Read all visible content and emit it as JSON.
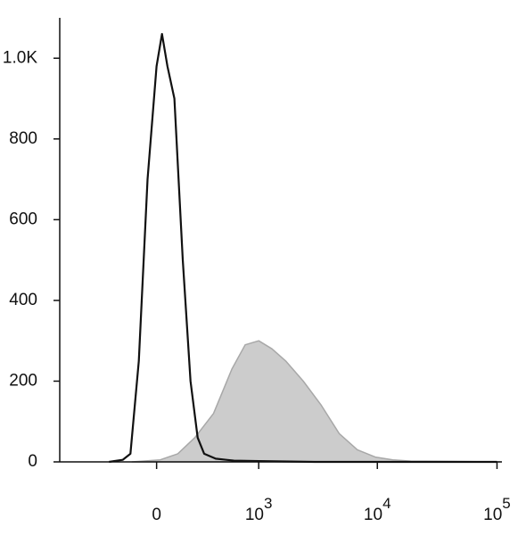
{
  "chart_data": {
    "type": "histogram-overlay",
    "xscale": "asinh",
    "xlim": [
      -900,
      110000
    ],
    "xticks": [
      0,
      {
        "value": 1000,
        "label": "10",
        "exponent": "3"
      },
      {
        "value": 10000,
        "label": "10",
        "exponent": "4"
      },
      {
        "value": 100000,
        "label": "10",
        "exponent": "5"
      }
    ],
    "ylim": [
      0,
      1100
    ],
    "yticks": [
      0,
      200,
      400,
      600,
      800,
      {
        "value": 1000,
        "label": "1.0K"
      }
    ],
    "series": [
      {
        "color": "#a8a8a8",
        "fill": "#cccccc",
        "x": [
          -140,
          20,
          120,
          230,
          380,
          575,
          760,
          1000,
          1300,
          1700,
          2400,
          3400,
          4800,
          6800,
          9600,
          13500,
          19000,
          107000
        ],
        "values": [
          0,
          5,
          20,
          60,
          120,
          230,
          290,
          300,
          280,
          250,
          200,
          140,
          70,
          30,
          12,
          5,
          2,
          0
        ]
      },
      {
        "color": "#111111",
        "x": [
          -300,
          -200,
          -150,
          -100,
          -50,
          0,
          30,
          60,
          100,
          150,
          200,
          250,
          300,
          400,
          600,
          1000,
          3000,
          100000
        ],
        "values": [
          0,
          5,
          20,
          250,
          700,
          980,
          1060,
          980,
          900,
          500,
          200,
          60,
          20,
          8,
          3,
          2,
          0,
          0
        ]
      }
    ]
  }
}
